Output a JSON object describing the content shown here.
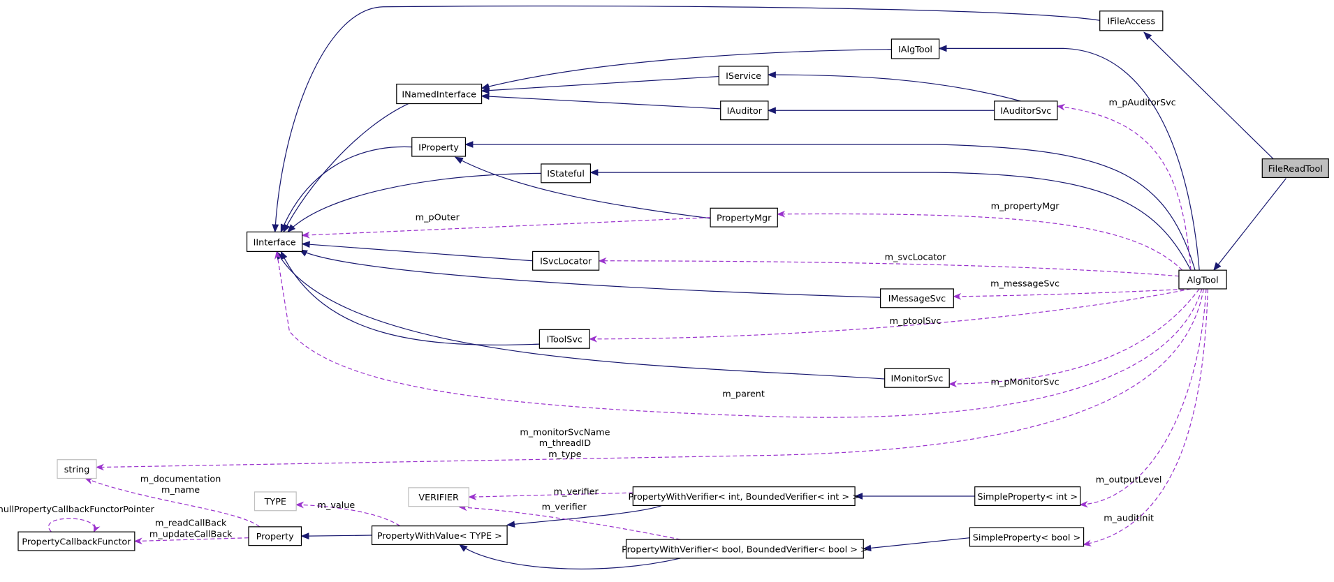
{
  "nodes": [
    {
      "label": "IFileAccess"
    },
    {
      "label": "IAlgTool"
    },
    {
      "label": "IService"
    },
    {
      "label": "INamedInterface"
    },
    {
      "label": "IAuditor"
    },
    {
      "label": "IAuditorSvc"
    },
    {
      "label": "IProperty"
    },
    {
      "label": "FileReadTool"
    },
    {
      "label": "IStateful"
    },
    {
      "label": "PropertyMgr"
    },
    {
      "label": "IInterface"
    },
    {
      "label": "ISvcLocator"
    },
    {
      "label": "AlgTool"
    },
    {
      "label": "IMessageSvc"
    },
    {
      "label": "IToolSvc"
    },
    {
      "label": "IMonitorSvc"
    },
    {
      "label": "string"
    },
    {
      "label": "VERIFIER"
    },
    {
      "label": "TYPE"
    },
    {
      "label": "PropertyWithVerifier< int, BoundedVerifier< int > >"
    },
    {
      "label": "SimpleProperty< int >"
    },
    {
      "label": "PropertyWithValue< TYPE >"
    },
    {
      "label": "Property"
    },
    {
      "label": "PropertyCallbackFunctor"
    },
    {
      "label": "PropertyWithVerifier< bool, BoundedVerifier< bool > >"
    },
    {
      "label": "SimpleProperty< bool >"
    }
  ],
  "edge_labels": [
    [
      "m_pAuditorSvc"
    ],
    [
      "m_propertyMgr"
    ],
    [
      "m_pOuter"
    ],
    [
      "m_svcLocator"
    ],
    [
      "m_messageSvc"
    ],
    [
      "m_ptoolSvc"
    ],
    [
      "m_pMonitorSvc"
    ],
    [
      "m_parent"
    ],
    [
      "m_monitorSvcName",
      "m_threadID",
      "m_type"
    ],
    [
      "m_documentation",
      "m_name"
    ],
    [
      "m_value"
    ],
    [
      "m_verifier"
    ],
    [
      "m_verifier"
    ],
    [
      "nullPropertyCallbackFunctorPointer"
    ],
    [
      "m_readCallBack",
      "m_updateCallBack"
    ],
    [
      "m_outputLevel"
    ],
    [
      "m_auditInit"
    ]
  ]
}
